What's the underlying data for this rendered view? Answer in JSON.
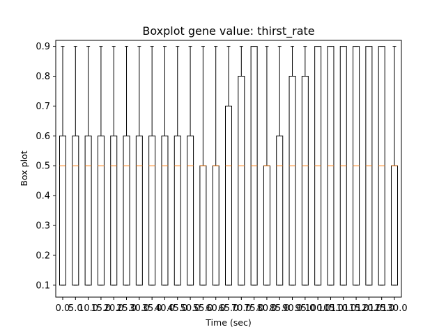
{
  "chart_data": {
    "type": "boxplot",
    "title": "Boxplot gene value: thirst_rate",
    "xlabel": "Time (sec)",
    "ylabel": "Box plot",
    "ylim": [
      0.06,
      0.92
    ],
    "yticks": [
      0.1,
      0.2,
      0.3,
      0.4,
      0.5,
      0.6,
      0.7,
      0.8,
      0.9
    ],
    "ytick_labels": [
      "0.1",
      "0.2",
      "0.3",
      "0.4",
      "0.5",
      "0.6",
      "0.7",
      "0.8",
      "0.9"
    ],
    "categories": [
      "0.0",
      "5.0",
      "10.0",
      "15.0",
      "20.0",
      "25.0",
      "30.0",
      "35.0",
      "40.0",
      "45.0",
      "50.0",
      "55.0",
      "60.0",
      "65.0",
      "70.0",
      "75.0",
      "80.0",
      "85.0",
      "90.0",
      "95.0",
      "100.0",
      "105.0",
      "110.0",
      "115.0",
      "120.0",
      "125.0",
      "130.0"
    ],
    "tick_labels": [
      "0.0",
      "5.0",
      "10.0",
      "15.0",
      "20.0",
      "25.0",
      "30.0",
      "35.0",
      "40.0",
      "45.0",
      "50.0",
      "55.0",
      "60.0",
      "65.0",
      "70.0",
      "75.0",
      "80.0",
      "85.0",
      "90.0",
      "95.0",
      "100.0",
      "105.0",
      "110.0",
      "115.0",
      "120.0",
      "125.0",
      "130.0"
    ],
    "boxes": [
      {
        "whisker_low": 0.1,
        "q1": 0.1,
        "median": 0.5,
        "q3": 0.6,
        "whisker_high": 0.9
      },
      {
        "whisker_low": 0.1,
        "q1": 0.1,
        "median": 0.5,
        "q3": 0.6,
        "whisker_high": 0.9
      },
      {
        "whisker_low": 0.1,
        "q1": 0.1,
        "median": 0.5,
        "q3": 0.6,
        "whisker_high": 0.9
      },
      {
        "whisker_low": 0.1,
        "q1": 0.1,
        "median": 0.5,
        "q3": 0.6,
        "whisker_high": 0.9
      },
      {
        "whisker_low": 0.1,
        "q1": 0.1,
        "median": 0.5,
        "q3": 0.6,
        "whisker_high": 0.9
      },
      {
        "whisker_low": 0.1,
        "q1": 0.1,
        "median": 0.5,
        "q3": 0.6,
        "whisker_high": 0.9
      },
      {
        "whisker_low": 0.1,
        "q1": 0.1,
        "median": 0.5,
        "q3": 0.6,
        "whisker_high": 0.9
      },
      {
        "whisker_low": 0.1,
        "q1": 0.1,
        "median": 0.5,
        "q3": 0.6,
        "whisker_high": 0.9
      },
      {
        "whisker_low": 0.1,
        "q1": 0.1,
        "median": 0.5,
        "q3": 0.6,
        "whisker_high": 0.9
      },
      {
        "whisker_low": 0.1,
        "q1": 0.1,
        "median": 0.5,
        "q3": 0.6,
        "whisker_high": 0.9
      },
      {
        "whisker_low": 0.1,
        "q1": 0.1,
        "median": 0.5,
        "q3": 0.6,
        "whisker_high": 0.9
      },
      {
        "whisker_low": 0.1,
        "q1": 0.1,
        "median": 0.5,
        "q3": 0.5,
        "whisker_high": 0.9
      },
      {
        "whisker_low": 0.1,
        "q1": 0.1,
        "median": 0.5,
        "q3": 0.5,
        "whisker_high": 0.9
      },
      {
        "whisker_low": 0.1,
        "q1": 0.1,
        "median": 0.5,
        "q3": 0.7,
        "whisker_high": 0.9
      },
      {
        "whisker_low": 0.1,
        "q1": 0.1,
        "median": 0.5,
        "q3": 0.8,
        "whisker_high": 0.9
      },
      {
        "whisker_low": 0.1,
        "q1": 0.1,
        "median": 0.5,
        "q3": 0.9,
        "whisker_high": 0.9
      },
      {
        "whisker_low": 0.1,
        "q1": 0.1,
        "median": 0.5,
        "q3": 0.5,
        "whisker_high": 0.9
      },
      {
        "whisker_low": 0.1,
        "q1": 0.1,
        "median": 0.5,
        "q3": 0.6,
        "whisker_high": 0.9
      },
      {
        "whisker_low": 0.1,
        "q1": 0.1,
        "median": 0.5,
        "q3": 0.8,
        "whisker_high": 0.9
      },
      {
        "whisker_low": 0.1,
        "q1": 0.1,
        "median": 0.5,
        "q3": 0.8,
        "whisker_high": 0.9
      },
      {
        "whisker_low": 0.1,
        "q1": 0.1,
        "median": 0.5,
        "q3": 0.9,
        "whisker_high": 0.9
      },
      {
        "whisker_low": 0.1,
        "q1": 0.1,
        "median": 0.5,
        "q3": 0.9,
        "whisker_high": 0.9
      },
      {
        "whisker_low": 0.1,
        "q1": 0.1,
        "median": 0.5,
        "q3": 0.9,
        "whisker_high": 0.9
      },
      {
        "whisker_low": 0.1,
        "q1": 0.1,
        "median": 0.5,
        "q3": 0.9,
        "whisker_high": 0.9
      },
      {
        "whisker_low": 0.1,
        "q1": 0.1,
        "median": 0.5,
        "q3": 0.9,
        "whisker_high": 0.9
      },
      {
        "whisker_low": 0.1,
        "q1": 0.1,
        "median": 0.5,
        "q3": 0.9,
        "whisker_high": 0.9
      },
      {
        "whisker_low": 0.1,
        "q1": 0.1,
        "median": 0.5,
        "q3": 0.5,
        "whisker_high": 0.9
      }
    ],
    "grid": false,
    "colors": {
      "box": "#000000",
      "median": "#ff7f0e",
      "background": "#ffffff"
    }
  }
}
